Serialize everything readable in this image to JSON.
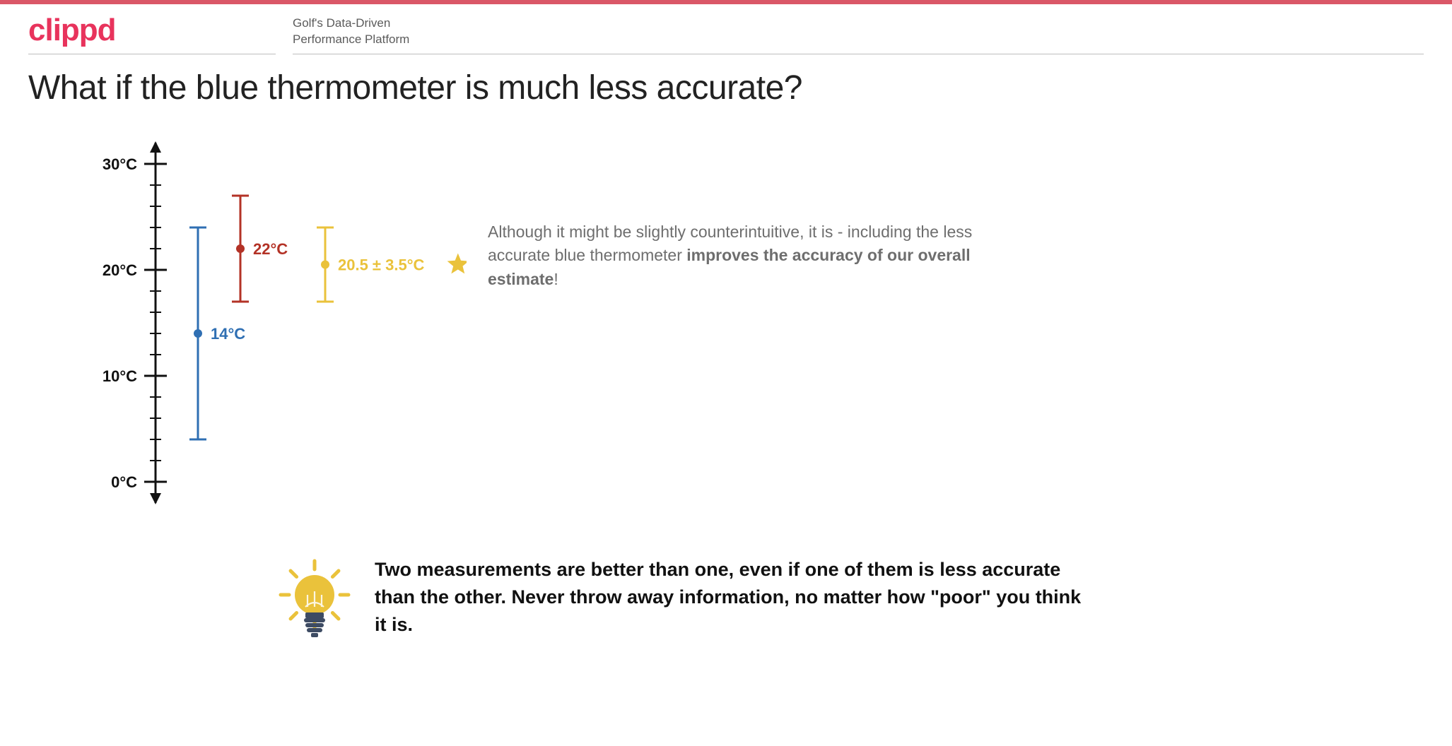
{
  "theme": {
    "topbar_color": "#da5768",
    "brand_color": "#e8335c",
    "text_muted": "#6e6e6e",
    "text_body": "#222222",
    "rule_color": "#bdbdbd",
    "background": "#ffffff"
  },
  "header": {
    "brand": "clippd",
    "tagline_line1": "Golf's Data-Driven",
    "tagline_line2": "Performance Platform"
  },
  "title": "What if the blue thermometer is much less accurate?",
  "chart": {
    "axis": {
      "ymin": -2,
      "ymax": 32,
      "major_ticks": [
        0,
        10,
        20,
        30
      ],
      "major_labels": [
        "0°C",
        "10°C",
        "20°C",
        "30°C"
      ],
      "minor_step": 2,
      "axis_color": "#111111",
      "tick_color": "#111111",
      "label_fontsize": 22,
      "label_fontweight": 700
    },
    "series": [
      {
        "id": "blue",
        "x": 60,
        "mean": 14,
        "low": 4,
        "high": 24,
        "color": "#2f6fb3",
        "label": "14°C",
        "label_fontsize": 22
      },
      {
        "id": "red",
        "x": 120,
        "mean": 22,
        "low": 17,
        "high": 27,
        "color": "#b33226",
        "label": "22°C",
        "label_fontsize": 22
      },
      {
        "id": "yellow",
        "x": 240,
        "mean": 20.5,
        "low": 17,
        "high": 24,
        "color": "#eac23b",
        "label": "20.5 ± 3.5°C",
        "label_fontsize": 22,
        "star": true
      }
    ],
    "marker_radius": 6,
    "cap_halfwidth": 12,
    "line_width": 3,
    "star_color": "#eac23b"
  },
  "explain": {
    "pre": "Although it might be slightly counterintuitive, it is - including the less accurate blue thermometer ",
    "bold": "improves the accuracy of our overall estimate",
    "post": "!"
  },
  "takeaway": "Two measurements are better than one, even if one of them is less accurate than the other. Never throw away information, no matter how \"poor\" you think it is.",
  "icons": {
    "bulb_glass": "#eac23b",
    "bulb_rays": "#eac23b",
    "bulb_base": "#3d4b63"
  }
}
